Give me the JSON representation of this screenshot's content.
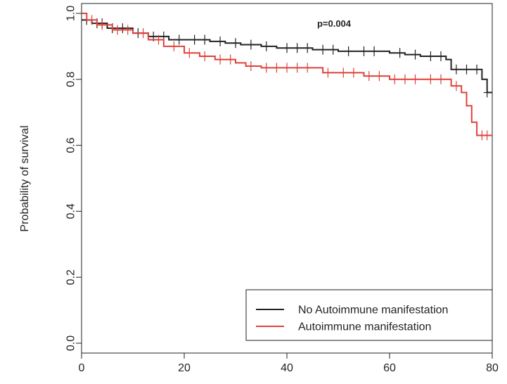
{
  "chart_data": {
    "type": "survival",
    "y_label": "Probability of survival",
    "annotation": "p=0.004",
    "xlim": [
      0,
      80
    ],
    "xticks": [
      0,
      20,
      40,
      60,
      80
    ],
    "ylim": [
      0,
      1
    ],
    "yticks": [
      {
        "value": 0,
        "label": "0.0"
      },
      {
        "value": 0.2,
        "label": "0.2"
      },
      {
        "value": 0.4,
        "label": "0.4"
      },
      {
        "value": 0.6,
        "label": "0.6"
      },
      {
        "value": 0.8,
        "label": "0.8"
      },
      {
        "value": 1,
        "label": "1.0"
      }
    ],
    "legend": "bottom-right",
    "series": [
      {
        "name": "No Autoimmune manifestation",
        "color": "#222222",
        "x": [
          0,
          2,
          5,
          10,
          13,
          17,
          25,
          28,
          31,
          35,
          38,
          45,
          50,
          60,
          63,
          66,
          71,
          72,
          78,
          79,
          80
        ],
        "values": [
          0.98,
          0.97,
          0.955,
          0.94,
          0.93,
          0.92,
          0.915,
          0.91,
          0.905,
          0.9,
          0.895,
          0.89,
          0.885,
          0.88,
          0.875,
          0.87,
          0.86,
          0.83,
          0.8,
          0.76,
          0.76
        ],
        "censored": [
          1,
          3,
          4,
          6,
          8,
          11,
          14,
          16,
          19,
          22,
          24,
          27,
          30,
          33,
          36,
          40,
          42,
          44,
          47,
          49,
          52,
          55,
          57,
          62,
          65,
          68,
          70,
          73,
          75,
          77,
          79
        ]
      },
      {
        "name": "Autoimmune manifestation",
        "color": "#e0413a",
        "x": [
          0,
          1,
          3,
          6,
          10,
          13,
          16,
          20,
          23,
          26,
          30,
          32,
          35,
          47,
          55,
          60,
          72,
          74,
          75,
          76,
          77,
          80
        ],
        "values": [
          1,
          0.98,
          0.965,
          0.95,
          0.94,
          0.92,
          0.9,
          0.88,
          0.87,
          0.86,
          0.85,
          0.84,
          0.835,
          0.82,
          0.81,
          0.8,
          0.78,
          0.76,
          0.72,
          0.67,
          0.63,
          0.63
        ],
        "censored": [
          2,
          4,
          7,
          9,
          12,
          15,
          18,
          21,
          24,
          27,
          29,
          33,
          36,
          38,
          40,
          42,
          44,
          48,
          51,
          53,
          56,
          58,
          61,
          63,
          65,
          68,
          70,
          73,
          78,
          79
        ]
      }
    ]
  }
}
